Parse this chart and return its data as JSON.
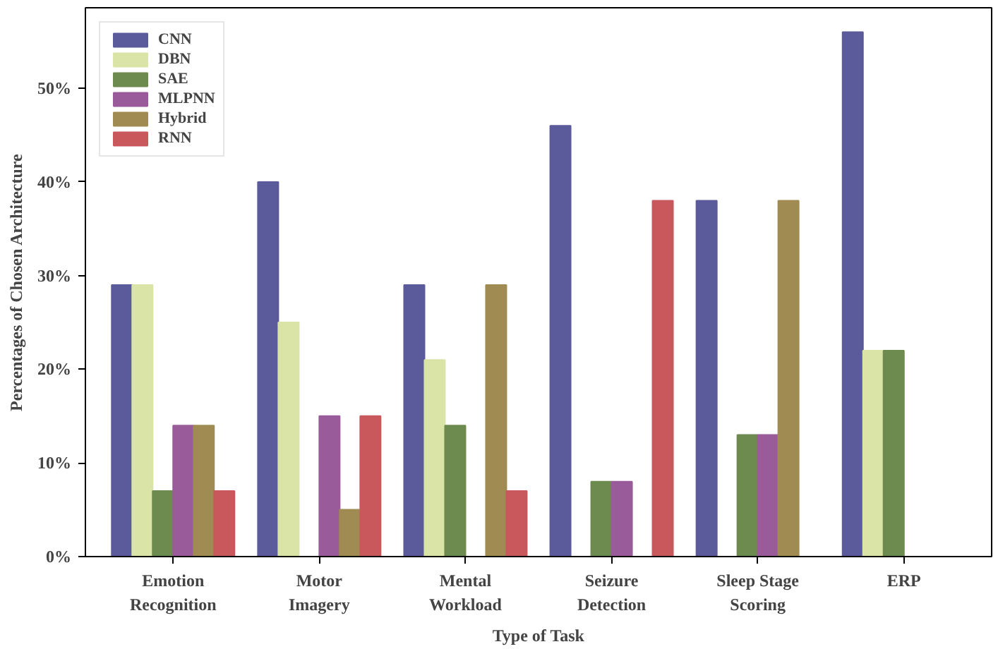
{
  "chart_data": {
    "type": "bar",
    "xlabel": "Type of Task",
    "ylabel": "Percentages of Chosen Architecture",
    "categories": [
      "Emotion\nRecognition",
      "Motor\nImagery",
      "Mental\nWorkload",
      "Seizure\nDetection",
      "Sleep Stage\nScoring",
      "ERP"
    ],
    "series": [
      {
        "name": "CNN",
        "color": "#5b5b9b",
        "values": [
          29,
          40,
          29,
          46,
          38,
          56
        ]
      },
      {
        "name": "DBN",
        "color": "#d9e4a6",
        "values": [
          29,
          25,
          21,
          0,
          0,
          22
        ]
      },
      {
        "name": "SAE",
        "color": "#6d8a4f",
        "values": [
          7,
          0,
          14,
          8,
          13,
          22
        ]
      },
      {
        "name": "MLPNN",
        "color": "#9a5b9a",
        "values": [
          14,
          15,
          0,
          8,
          13,
          0
        ]
      },
      {
        "name": "Hybrid",
        "color": "#a08b52",
        "values": [
          14,
          5,
          29,
          0,
          38,
          0
        ]
      },
      {
        "name": "RNN",
        "color": "#c8585c",
        "values": [
          7,
          15,
          7,
          38,
          0,
          0
        ]
      }
    ],
    "ylim": [
      0,
      58.6
    ],
    "yticks": [
      {
        "value": 0,
        "label": "0%"
      },
      {
        "value": 10,
        "label": "10%"
      },
      {
        "value": 20,
        "label": "20%"
      },
      {
        "value": 30,
        "label": "30%"
      },
      {
        "value": 40,
        "label": "40%"
      },
      {
        "value": 50,
        "label": "50%"
      }
    ],
    "grid": false,
    "legend": "top left"
  }
}
